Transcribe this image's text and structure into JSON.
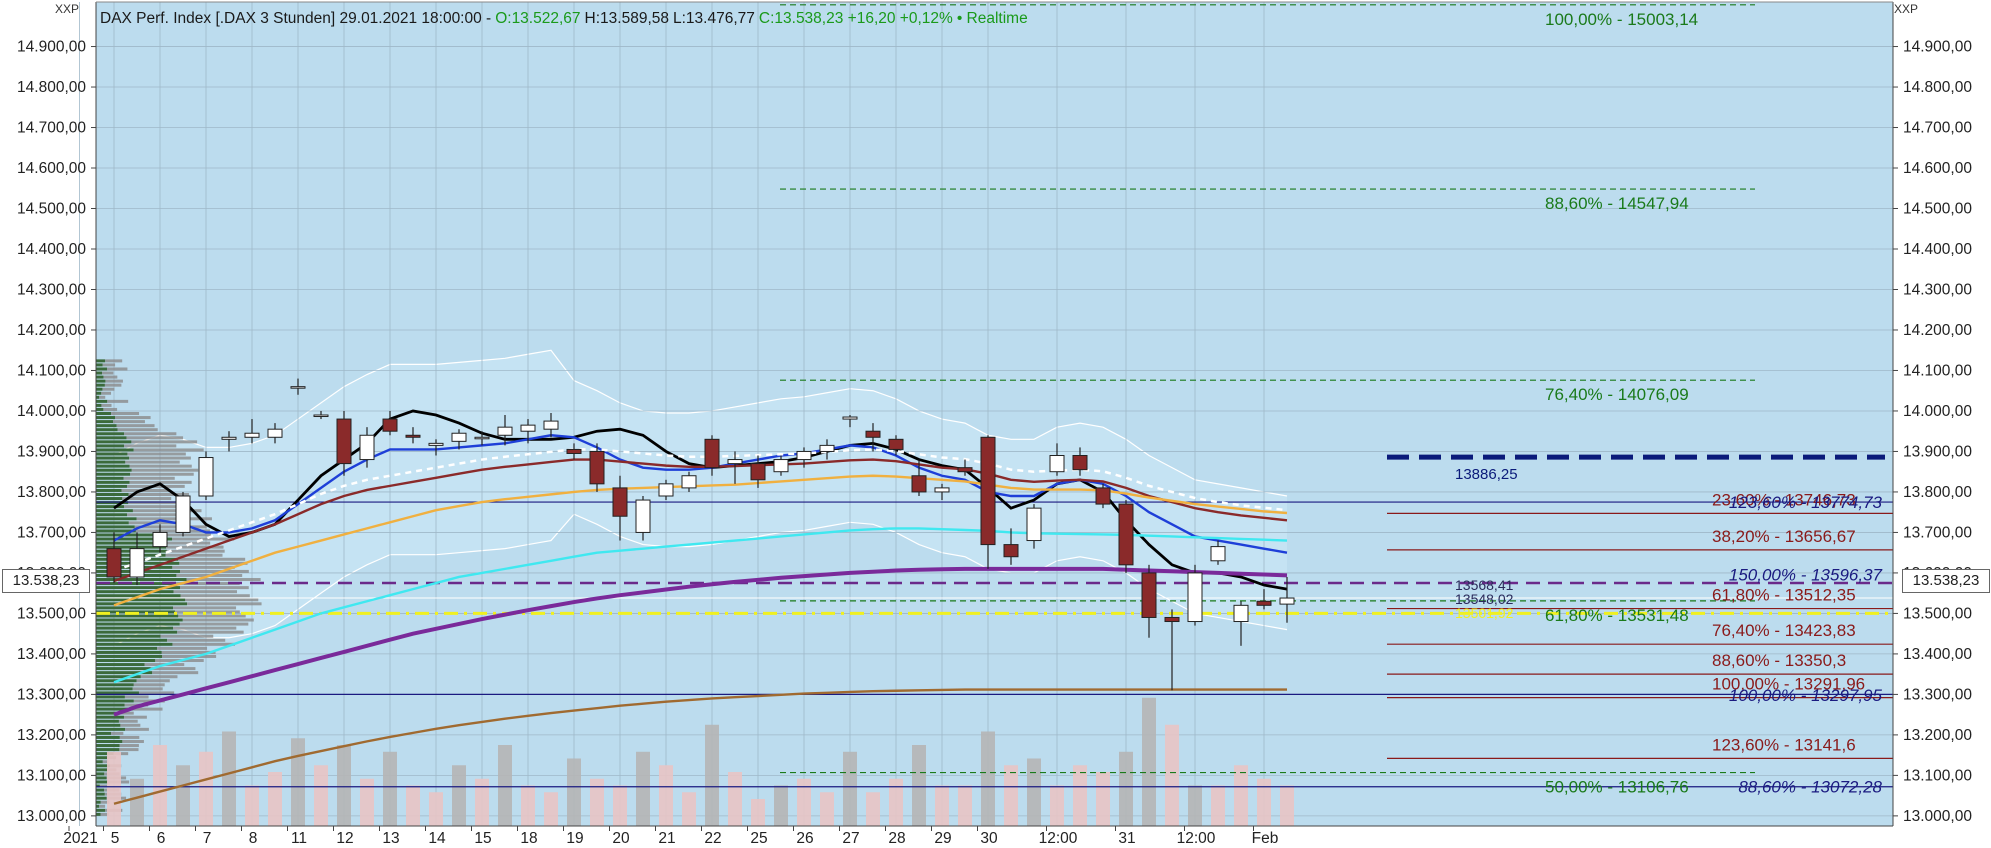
{
  "title": {
    "instrument": "DAX Perf. Index [.DAX 3 Stunden] 29.01.2021 18:00:00 -",
    "open": "O:13.522,67",
    "high": "H:13.589,58",
    "low": "L:13.476,77",
    "close_change": "C:13.538,23 +16,20 +0,12%",
    "status": "• Realtime"
  },
  "corner_left": "XXP",
  "corner_right": "XXP",
  "current_price_left": "13.538,23",
  "current_price_right": "13.538,23",
  "chart_data": {
    "type": "candlestick",
    "y_axis": {
      "min": 12975,
      "max": 15010,
      "ticks": [
        "13.000,00",
        "13.100,00",
        "13.200,00",
        "13.300,00",
        "13.400,00",
        "13.500,00",
        "13.600,00",
        "13.700,00",
        "13.800,00",
        "13.900,00",
        "14.000,00",
        "14.100,00",
        "14.200,00",
        "14.300,00",
        "14.400,00",
        "14.500,00",
        "14.600,00",
        "14.700,00",
        "14.800,00",
        "14.900,00"
      ],
      "tick_values": [
        13000,
        13100,
        13200,
        13300,
        13400,
        13500,
        13600,
        13700,
        13800,
        13900,
        14000,
        14100,
        14200,
        14300,
        14400,
        14500,
        14600,
        14700,
        14800,
        14900
      ]
    },
    "x_axis": {
      "labels": [
        "2021",
        "5",
        "6",
        "7",
        "8",
        "11",
        "12",
        "13",
        "14",
        "15",
        "18",
        "19",
        "20",
        "21",
        "22",
        "25",
        "26",
        "27",
        "28",
        "29",
        "30",
        "12:00",
        "31",
        "12:00",
        "Feb"
      ],
      "label_index": [
        -1,
        0.5,
        2.5,
        4.5,
        6.5,
        8.5,
        10.5,
        12.5,
        14.5,
        16.5,
        18.5,
        20.5,
        22.5,
        24.5,
        26.5,
        28.5,
        30.5,
        32.5,
        34.5,
        36.5,
        38.5,
        41.5,
        44.5,
        47.5,
        50.5
      ]
    },
    "candles": [
      {
        "o": 13660,
        "h": 13700,
        "l": 13575,
        "c": 13590
      },
      {
        "o": 13590,
        "h": 13700,
        "l": 13570,
        "c": 13660
      },
      {
        "o": 13665,
        "h": 13720,
        "l": 13650,
        "c": 13700
      },
      {
        "o": 13700,
        "h": 13800,
        "l": 13690,
        "c": 13790
      },
      {
        "o": 13790,
        "h": 13900,
        "l": 13780,
        "c": 13885
      },
      {
        "o": 13930,
        "h": 13950,
        "l": 13900,
        "c": 13935
      },
      {
        "o": 13935,
        "h": 13980,
        "l": 13920,
        "c": 13945
      },
      {
        "o": 13935,
        "h": 13970,
        "l": 13920,
        "c": 13955
      },
      {
        "o": 14060,
        "h": 14080,
        "l": 14040,
        "c": 14060
      },
      {
        "o": 13990,
        "h": 14000,
        "l": 13980,
        "c": 13990
      },
      {
        "o": 13980,
        "h": 14000,
        "l": 13840,
        "c": 13870
      },
      {
        "o": 13880,
        "h": 13960,
        "l": 13860,
        "c": 13940
      },
      {
        "o": 13980,
        "h": 14000,
        "l": 13940,
        "c": 13950
      },
      {
        "o": 13940,
        "h": 13960,
        "l": 13920,
        "c": 13935
      },
      {
        "o": 13915,
        "h": 13930,
        "l": 13890,
        "c": 13920
      },
      {
        "o": 13925,
        "h": 13955,
        "l": 13905,
        "c": 13945
      },
      {
        "o": 13935,
        "h": 13950,
        "l": 13915,
        "c": 13935
      },
      {
        "o": 13940,
        "h": 13990,
        "l": 13915,
        "c": 13960
      },
      {
        "o": 13950,
        "h": 13980,
        "l": 13920,
        "c": 13965
      },
      {
        "o": 13955,
        "h": 13995,
        "l": 13935,
        "c": 13975
      },
      {
        "o": 13905,
        "h": 13920,
        "l": 13880,
        "c": 13895
      },
      {
        "o": 13900,
        "h": 13920,
        "l": 13800,
        "c": 13820
      },
      {
        "o": 13810,
        "h": 13840,
        "l": 13680,
        "c": 13740
      },
      {
        "o": 13700,
        "h": 13790,
        "l": 13680,
        "c": 13780
      },
      {
        "o": 13790,
        "h": 13830,
        "l": 13780,
        "c": 13820
      },
      {
        "o": 13810,
        "h": 13850,
        "l": 13800,
        "c": 13840
      },
      {
        "o": 13930,
        "h": 13940,
        "l": 13840,
        "c": 13860
      },
      {
        "o": 13870,
        "h": 13900,
        "l": 13820,
        "c": 13880
      },
      {
        "o": 13870,
        "h": 13890,
        "l": 13810,
        "c": 13830
      },
      {
        "o": 13850,
        "h": 13890,
        "l": 13840,
        "c": 13880
      },
      {
        "o": 13880,
        "h": 13910,
        "l": 13860,
        "c": 13900
      },
      {
        "o": 13900,
        "h": 13930,
        "l": 13880,
        "c": 13915
      },
      {
        "o": 13980,
        "h": 13990,
        "l": 13960,
        "c": 13985
      },
      {
        "o": 13950,
        "h": 13970,
        "l": 13900,
        "c": 13935
      },
      {
        "o": 13930,
        "h": 13940,
        "l": 13890,
        "c": 13905
      },
      {
        "o": 13840,
        "h": 13880,
        "l": 13790,
        "c": 13800
      },
      {
        "o": 13800,
        "h": 13820,
        "l": 13780,
        "c": 13810
      },
      {
        "o": 13860,
        "h": 13880,
        "l": 13840,
        "c": 13850
      },
      {
        "o": 13935,
        "h": 13940,
        "l": 13610,
        "c": 13670
      },
      {
        "o": 13670,
        "h": 13710,
        "l": 13620,
        "c": 13640
      },
      {
        "o": 13680,
        "h": 13770,
        "l": 13660,
        "c": 13760
      },
      {
        "o": 13850,
        "h": 13920,
        "l": 13840,
        "c": 13890
      },
      {
        "o": 13890,
        "h": 13910,
        "l": 13840,
        "c": 13855
      },
      {
        "o": 13810,
        "h": 13820,
        "l": 13760,
        "c": 13770
      },
      {
        "o": 13770,
        "h": 13780,
        "l": 13600,
        "c": 13620
      },
      {
        "o": 13600,
        "h": 13620,
        "l": 13440,
        "c": 13490
      },
      {
        "o": 13490,
        "h": 13510,
        "l": 13310,
        "c": 13480
      },
      {
        "o": 13480,
        "h": 13620,
        "l": 13470,
        "c": 13600
      },
      {
        "o": 13630,
        "h": 13680,
        "l": 13620,
        "c": 13665
      },
      {
        "o": 13480,
        "h": 13530,
        "l": 13420,
        "c": 13520
      },
      {
        "o": 13530,
        "h": 13560,
        "l": 13510,
        "c": 13520
      },
      {
        "o": 13523,
        "h": 13590,
        "l": 13477,
        "c": 13538
      }
    ],
    "volume": [
      {
        "v": 0.55,
        "up": false
      },
      {
        "v": 0.35,
        "up": true
      },
      {
        "v": 0.6,
        "up": false
      },
      {
        "v": 0.45,
        "up": true
      },
      {
        "v": 0.55,
        "up": false
      },
      {
        "v": 0.7,
        "up": true
      },
      {
        "v": 0.3,
        "up": false
      },
      {
        "v": 0.4,
        "up": false
      },
      {
        "v": 0.65,
        "up": true
      },
      {
        "v": 0.45,
        "up": false
      },
      {
        "v": 0.6,
        "up": true
      },
      {
        "v": 0.35,
        "up": false
      },
      {
        "v": 0.55,
        "up": true
      },
      {
        "v": 0.3,
        "up": false
      },
      {
        "v": 0.25,
        "up": false
      },
      {
        "v": 0.45,
        "up": true
      },
      {
        "v": 0.35,
        "up": false
      },
      {
        "v": 0.6,
        "up": true
      },
      {
        "v": 0.3,
        "up": false
      },
      {
        "v": 0.25,
        "up": false
      },
      {
        "v": 0.5,
        "up": true
      },
      {
        "v": 0.35,
        "up": false
      },
      {
        "v": 0.3,
        "up": false
      },
      {
        "v": 0.55,
        "up": true
      },
      {
        "v": 0.45,
        "up": false
      },
      {
        "v": 0.25,
        "up": false
      },
      {
        "v": 0.75,
        "up": true
      },
      {
        "v": 0.4,
        "up": false
      },
      {
        "v": 0.2,
        "up": false
      },
      {
        "v": 0.3,
        "up": true
      },
      {
        "v": 0.35,
        "up": false
      },
      {
        "v": 0.25,
        "up": false
      },
      {
        "v": 0.55,
        "up": true
      },
      {
        "v": 0.25,
        "up": false
      },
      {
        "v": 0.35,
        "up": false
      },
      {
        "v": 0.6,
        "up": true
      },
      {
        "v": 0.3,
        "up": false
      },
      {
        "v": 0.3,
        "up": false
      },
      {
        "v": 0.7,
        "up": true
      },
      {
        "v": 0.45,
        "up": false
      },
      {
        "v": 0.5,
        "up": true
      },
      {
        "v": 0.3,
        "up": false
      },
      {
        "v": 0.45,
        "up": false
      },
      {
        "v": 0.4,
        "up": false
      },
      {
        "v": 0.55,
        "up": true
      },
      {
        "v": 0.95,
        "up": true
      },
      {
        "v": 0.75,
        "up": false
      },
      {
        "v": 0.3,
        "up": true
      },
      {
        "v": 0.3,
        "up": false
      },
      {
        "v": 0.45,
        "up": false
      },
      {
        "v": 0.35,
        "up": false
      },
      {
        "v": 0.3,
        "up": false
      }
    ],
    "moving_averages": [
      {
        "color": "#000000",
        "values": [
          13760,
          13800,
          13820,
          13780,
          13720,
          13690,
          13700,
          13720,
          13780,
          13840,
          13880,
          13920,
          13980,
          14000,
          13990,
          13970,
          13945,
          13930,
          13930,
          13930,
          13935,
          13950,
          13955,
          13940,
          13900,
          13870,
          13860,
          13865,
          13870,
          13875,
          13885,
          13900,
          13915,
          13920,
          13905,
          13880,
          13865,
          13855,
          13810,
          13760,
          13780,
          13820,
          13830,
          13800,
          13730,
          13670,
          13620,
          13600,
          13600,
          13590,
          13570,
          13560
        ]
      },
      {
        "color": "#1e3fd8",
        "values": [
          13680,
          13710,
          13730,
          13720,
          13700,
          13700,
          13710,
          13730,
          13770,
          13810,
          13850,
          13880,
          13905,
          13905,
          13905,
          13910,
          13915,
          13920,
          13930,
          13940,
          13935,
          13910,
          13880,
          13860,
          13855,
          13855,
          13860,
          13870,
          13880,
          13890,
          13895,
          13905,
          13915,
          13910,
          13890,
          13860,
          13840,
          13830,
          13800,
          13790,
          13790,
          13820,
          13830,
          13820,
          13790,
          13750,
          13720,
          13690,
          13680,
          13670,
          13660,
          13650
        ]
      },
      {
        "color": "#8a2a2a",
        "values": [
          13580,
          13600,
          13620,
          13640,
          13660,
          13680,
          13700,
          13720,
          13745,
          13770,
          13790,
          13805,
          13815,
          13825,
          13835,
          13845,
          13855,
          13862,
          13868,
          13874,
          13880,
          13880,
          13875,
          13870,
          13865,
          13862,
          13862,
          13864,
          13866,
          13868,
          13870,
          13874,
          13878,
          13880,
          13876,
          13868,
          13860,
          13856,
          13845,
          13830,
          13825,
          13828,
          13830,
          13826,
          13810,
          13790,
          13775,
          13760,
          13750,
          13742,
          13736,
          13730
        ]
      },
      {
        "color": "#f0b040",
        "values": [
          13520,
          13540,
          13560,
          13575,
          13590,
          13610,
          13630,
          13650,
          13665,
          13680,
          13695,
          13710,
          13725,
          13740,
          13755,
          13765,
          13775,
          13782,
          13788,
          13794,
          13800,
          13805,
          13808,
          13810,
          13812,
          13814,
          13816,
          13818,
          13822,
          13826,
          13830,
          13834,
          13838,
          13840,
          13838,
          13834,
          13830,
          13826,
          13818,
          13810,
          13806,
          13806,
          13806,
          13804,
          13796,
          13786,
          13778,
          13770,
          13764,
          13758,
          13752,
          13748
        ]
      },
      {
        "color": "#40e8f0",
        "values": [
          13330,
          13350,
          13370,
          13385,
          13400,
          13420,
          13440,
          13460,
          13480,
          13500,
          13515,
          13530,
          13545,
          13560,
          13575,
          13590,
          13600,
          13610,
          13620,
          13630,
          13640,
          13650,
          13655,
          13660,
          13665,
          13670,
          13675,
          13680,
          13685,
          13690,
          13695,
          13700,
          13705,
          13708,
          13710,
          13710,
          13708,
          13706,
          13704,
          13700,
          13698,
          13697,
          13696,
          13695,
          13694,
          13692,
          13690,
          13688,
          13686,
          13684,
          13682,
          13680
        ]
      },
      {
        "color": "#7a2a9a",
        "values": [
          13250,
          13270,
          13285,
          13300,
          13315,
          13330,
          13345,
          13360,
          13375,
          13390,
          13405,
          13420,
          13435,
          13450,
          13462,
          13474,
          13486,
          13497,
          13508,
          13518,
          13528,
          13537,
          13545,
          13552,
          13559,
          13566,
          13572,
          13578,
          13583,
          13588,
          13592,
          13596,
          13600,
          13603,
          13606,
          13608,
          13609,
          13610,
          13610,
          13610,
          13610,
          13610,
          13610,
          13610,
          13608,
          13606,
          13604,
          13602,
          13600,
          13598,
          13596,
          13594
        ]
      },
      {
        "color": "#a06a30",
        "values": [
          13030,
          13045,
          13060,
          13075,
          13090,
          13105,
          13120,
          13135,
          13148,
          13160,
          13172,
          13184,
          13195,
          13205,
          13215,
          13224,
          13232,
          13240,
          13247,
          13254,
          13260,
          13266,
          13272,
          13277,
          13282,
          13286,
          13290,
          13293,
          13296,
          13299,
          13302,
          13304,
          13306,
          13308,
          13309,
          13310,
          13311,
          13312,
          13312,
          13312,
          13312,
          13312,
          13312,
          13312,
          13312,
          13312,
          13312,
          13312,
          13312,
          13312,
          13312,
          13312
        ]
      }
    ],
    "fib_right": [
      {
        "text": "100,00% - 15003,14",
        "value": 15003,
        "color": "#1a7a1a",
        "dashed": true
      },
      {
        "text": "88,60% - 14547,94",
        "value": 14548,
        "color": "#1a7a1a",
        "dashed": true
      },
      {
        "text": "76,40% - 14076,09",
        "value": 14076,
        "color": "#1a7a1a",
        "dashed": true
      },
      {
        "text": "23,60% - 13746,73",
        "value": 13747,
        "color": "#8a1a1a",
        "dashed": false
      },
      {
        "text": "38,20% - 13656,67",
        "value": 13657,
        "color": "#8a1a1a",
        "dashed": false
      },
      {
        "text": "61,80% - 13531,48",
        "value": 13531,
        "color": "#1a7a1a",
        "dashed": true
      },
      {
        "text": "61,80% - 13512,35",
        "value": 13512,
        "color": "#8a1a1a",
        "dashed": false
      },
      {
        "text": "76,40% - 13423,83",
        "value": 13424,
        "color": "#8a1a1a",
        "dashed": false
      },
      {
        "text": "88,60% - 13350,3",
        "value": 13350,
        "color": "#8a1a1a",
        "dashed": false
      },
      {
        "text": "100,00% - 13291,96",
        "value": 13292,
        "color": "#8a1a1a",
        "dashed": false
      },
      {
        "text": "123,60% - 13141,6",
        "value": 13142,
        "color": "#8a1a1a",
        "dashed": false
      },
      {
        "text": "50,00% - 13106,76",
        "value": 13107,
        "color": "#1a7a1a",
        "dashed": true
      }
    ],
    "fib_blue": [
      {
        "text": "123,60% - 13774,73",
        "value": 13775
      },
      {
        "text": "150,00% - 13596,37",
        "value": 13596
      },
      {
        "text": "100,00% - 13297,95",
        "value": 13298
      },
      {
        "text": "88,60% - 13072,28",
        "value": 13072
      }
    ],
    "support_label": "13886,25",
    "support_value": 13886,
    "small_labels": [
      "13568,41",
      "13548,02",
      "13501,92"
    ]
  }
}
